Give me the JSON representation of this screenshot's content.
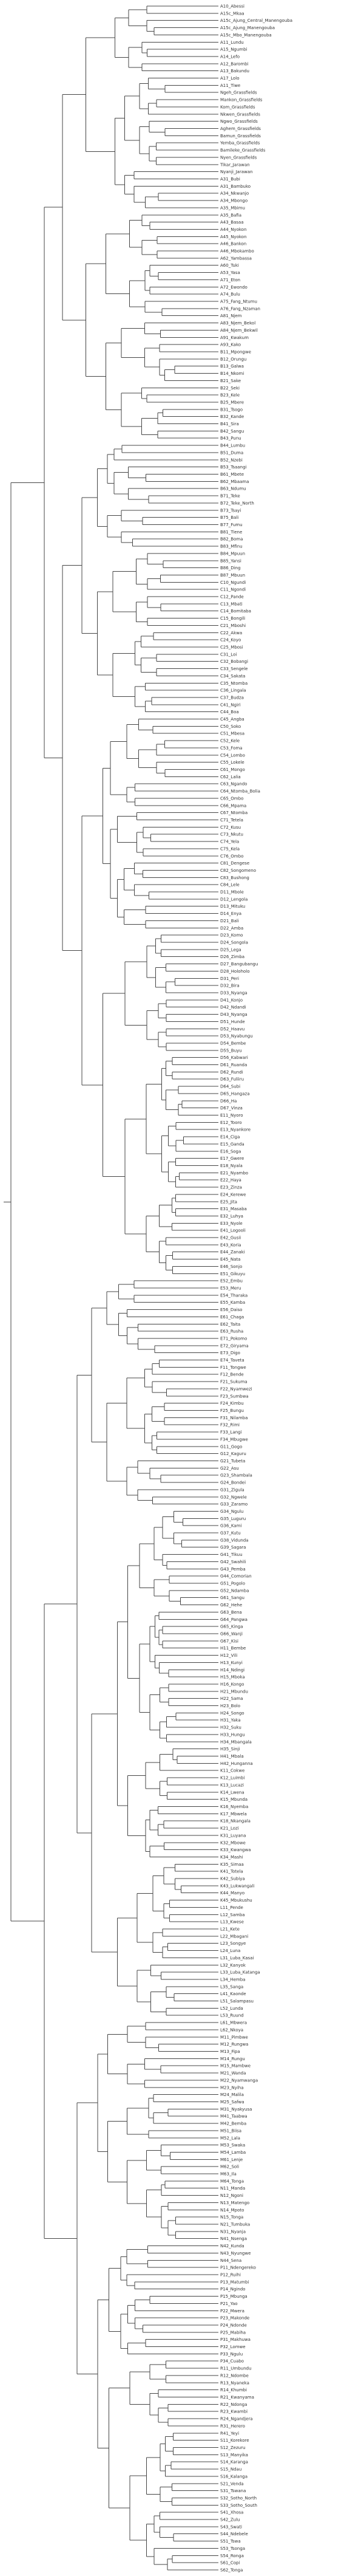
{
  "tree": {
    "tips": [
      "A10_Abessi",
      "A15c_Mkaa",
      "A15c_Ajung_Central_Manengouba",
      "A15c_Ajung_Manengouba",
      "A15c_Mbo_Manengouba",
      "A11_Lundu",
      "A15_Ngumbi",
      "A14_Lefo",
      "A12_Barombi",
      "A13_Bakundu",
      "A17_Lolo",
      "A11_Tiwe",
      "Ngeh_Grassfields",
      "Mankon_Grassfields",
      "Kom_Grassfields",
      "Nkwen_Grassfields",
      "Ngwo_Grassfields",
      "Aghem_Grassfields",
      "Bamun_Grassfields",
      "Yemba_Grassfields",
      "Bamileke_Grassfields",
      "Nyen_Grassfields",
      "Tikar_Jarawan",
      "Nyanji_Jarawan",
      "A31_Bubi",
      "A31_Bambuko",
      "A34_Nkwanjo",
      "A34_Mbongo",
      "A35_Mbimu",
      "A35_Bafia",
      "A43_Basaa",
      "A44_Nyokon",
      "A45_Nyokon",
      "A46_Bankon",
      "A46_Mbokambo",
      "A62_Yambassa",
      "A60_Tuki",
      "A53_Yasa",
      "A71_Eton",
      "A72_Ewondo",
      "A74_Bulu",
      "A75_Fang_Ntumu",
      "A76_Fang_Nzaman",
      "A81_Njem",
      "A83_Njem_Bekol",
      "A84_Njem_Bekwil",
      "A91_Kwakum",
      "A93_Kako",
      "B11_Mpongwe",
      "B12_Orungu",
      "B13_Galwa",
      "B14_Nkomi",
      "B21_Sake",
      "B22_Seki",
      "B23_Kele",
      "B25_Mbere",
      "B31_Tsogo",
      "B32_Kande",
      "B41_Sira",
      "B42_Sangu",
      "B43_Punu",
      "B44_Lumbu",
      "B51_Duma",
      "B52_Nzebi",
      "B53_Tsaangi",
      "B61_Mbete",
      "B62_Mbaama",
      "B63_Ndumu",
      "B71_Teke",
      "B72_Teke_North",
      "B73_Tsayi",
      "B75_Bali",
      "B77_Fumu",
      "B81_Tiene",
      "B82_Boma",
      "B83_Mfinu",
      "B84_Mpuun",
      "B85_Yansi",
      "B86_Ding",
      "B87_Mbuun",
      "C10_Ngundi",
      "C11_Ngondi",
      "C12_Pande",
      "C13_Mbati",
      "C14_Bomitaba",
      "C15_Bongili",
      "C21_Mboshi",
      "C22_Akwa",
      "C24_Koyo",
      "C25_Mbosi",
      "C31_Loi",
      "C32_Bobangi",
      "C33_Sengele",
      "C34_Sakata",
      "C35_Ntomba",
      "C36_Lingala",
      "C37_Budza",
      "C41_Ngiri",
      "C44_Boa",
      "C45_Angba",
      "C50_Soko",
      "C51_Mbesa",
      "C52_Kele",
      "C53_Foma",
      "C54_Lombo",
      "C55_Lokele",
      "C61_Mongo",
      "C62_Lalia",
      "C63_Ngando",
      "C64_Ntomba_Bolia",
      "C65_Ombo",
      "C66_Mpama",
      "C67_Ntomba",
      "C71_Tetela",
      "C72_Kusu",
      "C73_Nkutu",
      "C74_Yela",
      "C75_Kela",
      "C76_Ombo",
      "C81_Dengese",
      "C82_Songomeno",
      "C83_Bushong",
      "C84_Lele",
      "D11_Mbole",
      "D12_Lengola",
      "D13_Mituku",
      "D14_Enya",
      "D21_Bali",
      "D22_Amba",
      "D23_Komo",
      "D24_Songola",
      "D25_Lega",
      "D26_Zimba",
      "D27_Bangubangu",
      "D28_Holoholo",
      "D31_Peri",
      "D32_Bira",
      "D33_Nyanga",
      "D41_Konjo",
      "D42_Ndandi",
      "D43_Nyanga",
      "D51_Hunde",
      "D52_Haavu",
      "D53_Nyabungu",
      "D54_Bembe",
      "D55_Buyu",
      "D56_Kabwari",
      "D61_Ruanda",
      "D62_Rundi",
      "D63_Fuliiru",
      "D64_Subi",
      "D65_Hangaza",
      "D66_Ha",
      "D67_Vinza",
      "E11_Nyoro",
      "E12_Tooro",
      "E13_Nyankore",
      "E14_Ciga",
      "E15_Ganda",
      "E16_Soga",
      "E17_Gwere",
      "E18_Nyala",
      "E21_Nyambo",
      "E22_Haya",
      "E23_Zinza",
      "E24_Kerewe",
      "E25_Jita",
      "E31_Masaba",
      "E32_Luhya",
      "E33_Nyole",
      "E41_Logooli",
      "E42_Gusii",
      "E43_Koria",
      "E44_Zanaki",
      "E45_Nata",
      "E46_Sonjo",
      "E51_Gikuyu",
      "E52_Embu",
      "E53_Meru",
      "E54_Tharaka",
      "E55_Kamba",
      "E56_Daiso",
      "E61_Chaga",
      "E62_Taita",
      "E63_Rusha",
      "E71_Pokomo",
      "E72_Giryama",
      "E73_Digo",
      "E74_Taveta",
      "F11_Tongwe",
      "F12_Bende",
      "F21_Sukuma",
      "F22_Nyamwezi",
      "F23_Sumbwa",
      "F24_Kimbu",
      "F25_Bungu",
      "F31_Nilamba",
      "F32_Rimi",
      "F33_Langi",
      "F34_Mbugwe",
      "G11_Gogo",
      "G12_Kaguru",
      "G21_Tubeta",
      "G22_Asu",
      "G23_Shambala",
      "G24_Bondei",
      "G31_Zigula",
      "G32_Ngwele",
      "G33_Zaramo",
      "G34_Ngulu",
      "G35_Luguru",
      "G36_Kami",
      "G37_Kutu",
      "G38_Vidunda",
      "G39_Sagara",
      "G41_Tikuu",
      "G42_Swahili",
      "G43_Pemba",
      "G44_Comorian",
      "G51_Pogolo",
      "G52_Ndamba",
      "G61_Sangu",
      "G62_Hehe",
      "G63_Bena",
      "G64_Pangwa",
      "G65_Kinga",
      "G66_Wanji",
      "G67_Kisi",
      "H11_Bembe",
      "H12_Vili",
      "H13_Kunyi",
      "H14_Ndingi",
      "H15_Mboka",
      "H16_Kongo",
      "H21_Mbundu",
      "H22_Sama",
      "H23_Bolo",
      "H24_Songo",
      "H31_Yaka",
      "H32_Suku",
      "H33_Hungu",
      "H34_Mbangala",
      "H35_Sinji",
      "H41_Mbala",
      "H42_Hunganna",
      "K11_Cokwe",
      "K12_Luimbi",
      "K13_Lucazi",
      "K14_Lwena",
      "K15_Mbunda",
      "K16_Nyemba",
      "K17_Mbwela",
      "K18_Nkangala",
      "K21_Lozi",
      "K31_Luyana",
      "K32_Mbowe",
      "K33_Kwangwa",
      "K34_Mashi",
      "K35_Simaa",
      "K41_Totela",
      "K42_Subiya",
      "K43_Lukwangali",
      "K44_Manyo",
      "K45_Mbukushu",
      "L11_Pende",
      "L12_Samba",
      "L13_Kwese",
      "L21_Kete",
      "L22_Mbagani",
      "L23_Songye",
      "L24_Luna",
      "L31_Luba_Kasai",
      "L32_Kanyok",
      "L33_Luba_Katanga",
      "L34_Hemba",
      "L35_Sanga",
      "L41_Kaonde",
      "L51_Salampasu",
      "L52_Lunda",
      "L53_Ruund",
      "L61_Mbwera",
      "L62_Nkoya",
      "M11_Pimbwe",
      "M12_Rungwa",
      "M13_Fipa",
      "M14_Rungu",
      "M15_Mambwe",
      "M21_Wanda",
      "M22_Nyamwanga",
      "M23_Nyiha",
      "M24_Malila",
      "M25_Safwa",
      "M31_Nyakyusa",
      "M41_Taabwa",
      "M42_Bemba",
      "M51_Biisa",
      "M52_Lala",
      "M53_Swaka",
      "M54_Lamba",
      "M61_Lenje",
      "M62_Soli",
      "M63_Ila",
      "M64_Tonga",
      "N11_Manda",
      "N12_Ngoni",
      "N13_Matengo",
      "N14_Mpoto",
      "N15_Tonga",
      "N21_Tumbuka",
      "N31_Nyanja",
      "N41_Nsenga",
      "N42_Kunda",
      "N43_Nyungwe",
      "N44_Sena",
      "P11_Ndengereko",
      "P12_Ruihi",
      "P13_Matumbi",
      "P14_Ngindo",
      "P15_Mbunga",
      "P21_Yao",
      "P22_Mwera",
      "P23_Makonde",
      "P24_Ndonde",
      "P25_Mabiha",
      "P31_Makhuwa",
      "P32_Lomwe",
      "P33_Ngulu",
      "P34_Cuabo",
      "R11_Umbundu",
      "R12_Ndombe",
      "R13_Nyaneka",
      "R14_Khumbi",
      "R21_Kwanyama",
      "R22_Ndonga",
      "R23_Kwambi",
      "R24_Ngandjera",
      "R31_Herero",
      "R41_Yeyi",
      "S11_Korekore",
      "S12_Zezuru",
      "S13_Manyika",
      "S14_Karanga",
      "S15_Ndau",
      "S16_Kalanga",
      "S21_Venda",
      "S31_Tswana",
      "S32_Sotho_North",
      "S33_Sotho_South",
      "S41_Xhosa",
      "S42_Zulu",
      "S43_Swati",
      "S44_Ndebele",
      "S51_Tswa",
      "S53_Tsonga",
      "S54_Ronga",
      "S61_Copi",
      "S62_Tonga"
    ]
  }
}
